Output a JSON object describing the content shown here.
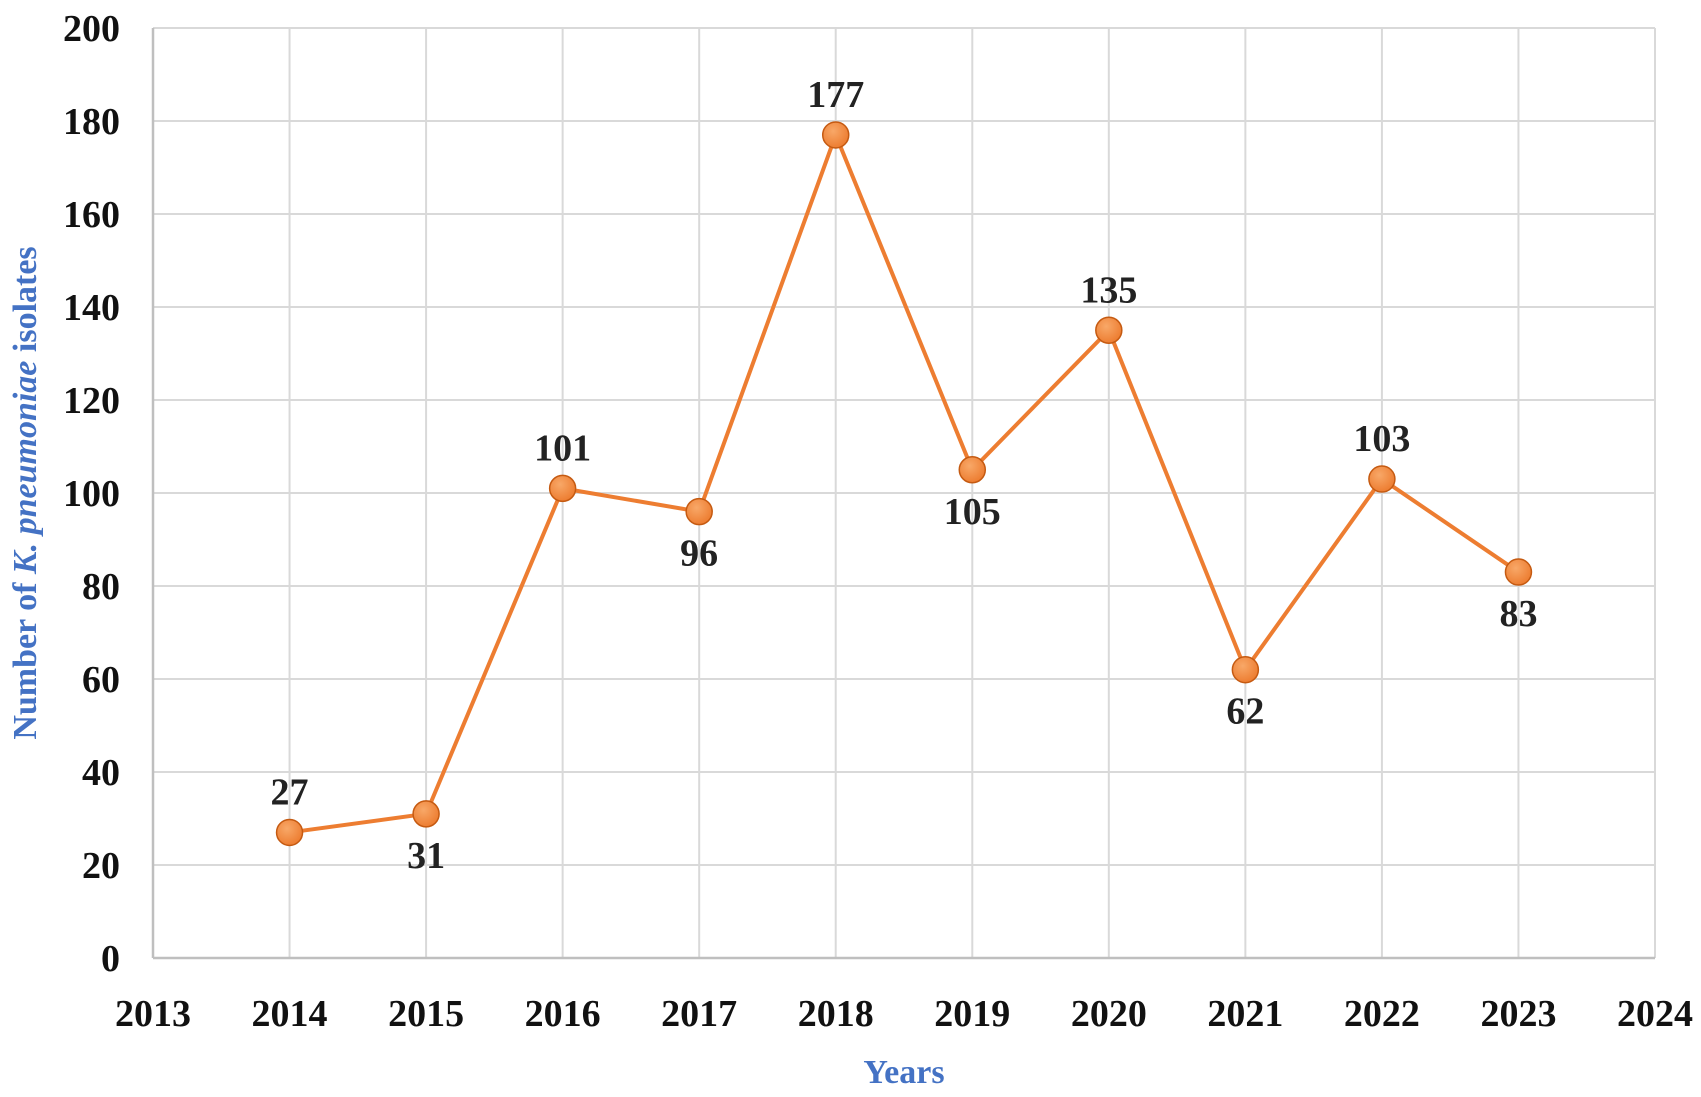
{
  "chart_data": {
    "type": "line",
    "x": [
      2014,
      2015,
      2016,
      2017,
      2018,
      2019,
      2020,
      2021,
      2022,
      2023
    ],
    "values": [
      27,
      31,
      101,
      96,
      177,
      105,
      135,
      62,
      103,
      83
    ],
    "xlabel": "Years",
    "ylabel": {
      "prefix": "Number of ",
      "italic": "K. pneumoniae",
      "suffix": " isolates"
    },
    "xlim": [
      2013,
      2024
    ],
    "ylim": [
      0,
      200
    ],
    "xticks": [
      "2013",
      "2014",
      "2015",
      "2016",
      "2017",
      "2018",
      "2019",
      "2020",
      "2021",
      "2022",
      "2023",
      "2024"
    ],
    "yticks": [
      "0",
      "20",
      "40",
      "60",
      "80",
      "100",
      "120",
      "140",
      "160",
      "180",
      "200"
    ],
    "data_labels": [
      "27",
      "31",
      "101",
      "96",
      "177",
      "105",
      "135",
      "62",
      "103",
      "83"
    ],
    "label_positions": [
      "above",
      "below",
      "above",
      "below",
      "above",
      "below",
      "above",
      "below",
      "above",
      "below"
    ],
    "grid": true,
    "legend": false,
    "colors": {
      "line": "#ED7D31",
      "marker": "#ED7D31",
      "axis_title": "#4472C4",
      "grid": "#D9D9D9",
      "axis_line": "#BFBFBF"
    }
  }
}
